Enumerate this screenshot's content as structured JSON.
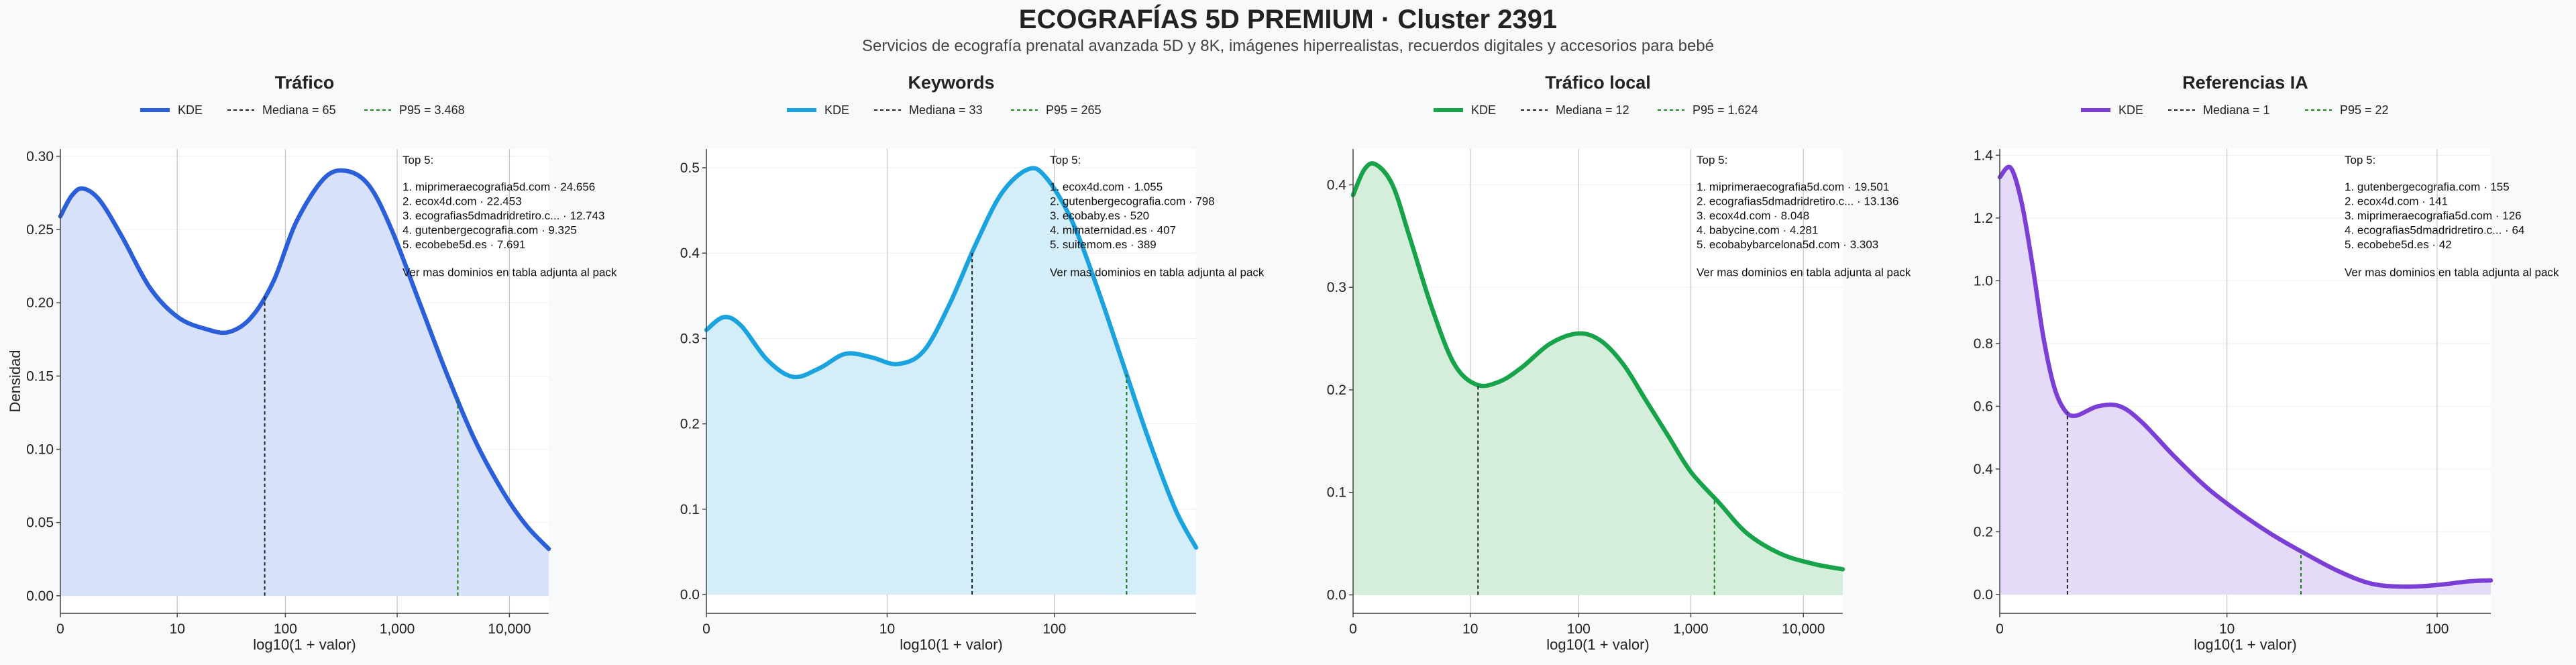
{
  "page": {
    "title": "ECOGRAFÍAS 5D PREMIUM · Cluster 2391",
    "subtitle": "Servicios de ecografía prenatal avanzada 5D y 8K, imágenes hiperrealistas, recuerdos digitales y accesorios para bebé"
  },
  "chart_data": [
    {
      "type": "area",
      "title": "Tráfico",
      "color": "#2a5fd9",
      "fill": "#d8e1fa",
      "xlabel": "log10(1 + valor)",
      "ylabel": "Densidad",
      "xlim": [
        0,
        4.35
      ],
      "ylim": [
        -0.012,
        0.305
      ],
      "xticks": [
        {
          "pos": 0,
          "label": "0"
        },
        {
          "pos": 1.041,
          "label": "10"
        },
        {
          "pos": 2.004,
          "label": "100"
        },
        {
          "pos": 3.0,
          "label": "1,000"
        },
        {
          "pos": 4.0,
          "label": "10,000"
        }
      ],
      "yticks": [
        0,
        0.05,
        0.1,
        0.15,
        0.2,
        0.25,
        0.3
      ],
      "ytick_labels": [
        "0.00",
        "0.05",
        "0.10",
        "0.15",
        "0.20",
        "0.25",
        "0.30"
      ],
      "legend": {
        "kde": "KDE",
        "median": "Mediana = 65",
        "p95": "P95 = 3.468"
      },
      "median_x": 1.82,
      "p95_x": 3.54,
      "kde": [
        [
          0,
          0.259
        ],
        [
          0.1,
          0.273
        ],
        [
          0.2,
          0.278
        ],
        [
          0.35,
          0.27
        ],
        [
          0.55,
          0.245
        ],
        [
          0.8,
          0.21
        ],
        [
          1.05,
          0.19
        ],
        [
          1.3,
          0.182
        ],
        [
          1.5,
          0.18
        ],
        [
          1.7,
          0.19
        ],
        [
          1.9,
          0.215
        ],
        [
          2.1,
          0.255
        ],
        [
          2.35,
          0.285
        ],
        [
          2.55,
          0.29
        ],
        [
          2.75,
          0.28
        ],
        [
          2.95,
          0.25
        ],
        [
          3.2,
          0.2
        ],
        [
          3.45,
          0.15
        ],
        [
          3.7,
          0.105
        ],
        [
          3.95,
          0.07
        ],
        [
          4.15,
          0.048
        ],
        [
          4.35,
          0.032
        ]
      ],
      "top5": {
        "heading": "Top 5:",
        "items": [
          "1. miprimeraecografia5d.com · 24.656",
          "2. ecox4d.com · 22.453",
          "3. ecografias5dmadridretiro.c... · 12.743",
          "4. gutenbergecografia.com · 9.325",
          "5. ecobebe5d.es · 7.691"
        ],
        "note": "Ver mas dominios en tabla adjunta al pack"
      }
    },
    {
      "type": "area",
      "title": "Keywords",
      "color": "#1aa3de",
      "fill": "#d3edf9",
      "xlabel": "log10(1 + valor)",
      "ylabel": "",
      "xlim": [
        0,
        2.82
      ],
      "ylim": [
        -0.022,
        0.522
      ],
      "xticks": [
        {
          "pos": 0,
          "label": "0"
        },
        {
          "pos": 1.041,
          "label": "10"
        },
        {
          "pos": 2.004,
          "label": "100"
        }
      ],
      "yticks": [
        0,
        0.1,
        0.2,
        0.3,
        0.4,
        0.5
      ],
      "ytick_labels": [
        "0.0",
        "0.1",
        "0.2",
        "0.3",
        "0.4",
        "0.5"
      ],
      "legend": {
        "kde": "KDE",
        "median": "Mediana = 33",
        "p95": "P95 = 265"
      },
      "median_x": 1.53,
      "p95_x": 2.42,
      "kde": [
        [
          0,
          0.31
        ],
        [
          0.1,
          0.325
        ],
        [
          0.2,
          0.315
        ],
        [
          0.35,
          0.275
        ],
        [
          0.5,
          0.255
        ],
        [
          0.65,
          0.265
        ],
        [
          0.8,
          0.282
        ],
        [
          0.95,
          0.278
        ],
        [
          1.1,
          0.27
        ],
        [
          1.25,
          0.285
        ],
        [
          1.4,
          0.34
        ],
        [
          1.55,
          0.41
        ],
        [
          1.7,
          0.47
        ],
        [
          1.85,
          0.498
        ],
        [
          1.95,
          0.49
        ],
        [
          2.1,
          0.44
        ],
        [
          2.25,
          0.36
        ],
        [
          2.4,
          0.27
        ],
        [
          2.55,
          0.18
        ],
        [
          2.7,
          0.1
        ],
        [
          2.82,
          0.055
        ]
      ],
      "top5": {
        "heading": "Top 5:",
        "items": [
          "1. ecox4d.com · 1.055",
          "2. gutenbergecografia.com · 798",
          "3. ecobaby.es · 520",
          "4. mimaternidad.es · 407",
          "5. suitemom.es · 389"
        ],
        "note": "Ver mas dominios en tabla adjunta al pack"
      }
    },
    {
      "type": "area",
      "title": "Tráfico local",
      "color": "#16a34a",
      "fill": "#d4eedb",
      "xlabel": "log10(1 + valor)",
      "ylabel": "",
      "xlim": [
        0,
        4.35
      ],
      "ylim": [
        -0.018,
        0.435
      ],
      "xticks": [
        {
          "pos": 0,
          "label": "0"
        },
        {
          "pos": 1.041,
          "label": "10"
        },
        {
          "pos": 2.004,
          "label": "100"
        },
        {
          "pos": 3.0,
          "label": "1,000"
        },
        {
          "pos": 4.0,
          "label": "10,000"
        }
      ],
      "yticks": [
        0,
        0.1,
        0.2,
        0.3,
        0.4
      ],
      "ytick_labels": [
        "0.0",
        "0.1",
        "0.2",
        "0.3",
        "0.4"
      ],
      "legend": {
        "kde": "KDE",
        "median": "Mediana = 12",
        "p95": "P95 = 1.624"
      },
      "median_x": 1.11,
      "p95_x": 3.21,
      "kde": [
        [
          0,
          0.39
        ],
        [
          0.1,
          0.415
        ],
        [
          0.2,
          0.42
        ],
        [
          0.35,
          0.4
        ],
        [
          0.5,
          0.35
        ],
        [
          0.7,
          0.28
        ],
        [
          0.9,
          0.225
        ],
        [
          1.1,
          0.205
        ],
        [
          1.3,
          0.208
        ],
        [
          1.5,
          0.222
        ],
        [
          1.75,
          0.245
        ],
        [
          2.0,
          0.255
        ],
        [
          2.2,
          0.248
        ],
        [
          2.4,
          0.225
        ],
        [
          2.6,
          0.19
        ],
        [
          2.8,
          0.155
        ],
        [
          3.0,
          0.12
        ],
        [
          3.25,
          0.09
        ],
        [
          3.5,
          0.06
        ],
        [
          3.8,
          0.04
        ],
        [
          4.1,
          0.03
        ],
        [
          4.35,
          0.025
        ]
      ],
      "top5": {
        "heading": "Top 5:",
        "items": [
          "1. miprimeraecografia5d.com · 19.501",
          "2. ecografias5dmadridretiro.c... · 13.136",
          "3. ecox4d.com · 8.048",
          "4. babycine.com · 4.281",
          "5. ecobabybarcelona5d.com · 3.303"
        ],
        "note": "Ver mas dominios en tabla adjunta al pack"
      }
    },
    {
      "type": "area",
      "title": "Referencias IA",
      "color": "#7b3fd8",
      "fill": "#e5dbf9",
      "xlabel": "log10(1 + valor)",
      "ylabel": "",
      "xlim": [
        0,
        2.25
      ],
      "ylim": [
        -0.06,
        1.42
      ],
      "xticks": [
        {
          "pos": 0,
          "label": "0"
        },
        {
          "pos": 1.041,
          "label": "10"
        },
        {
          "pos": 2.004,
          "label": "100"
        }
      ],
      "yticks": [
        0,
        0.2,
        0.4,
        0.6,
        0.8,
        1.0,
        1.2,
        1.4
      ],
      "ytick_labels": [
        "0.0",
        "0.2",
        "0.4",
        "0.6",
        "0.8",
        "1.0",
        "1.2",
        "1.4"
      ],
      "legend": {
        "kde": "KDE",
        "median": "Mediana = 1",
        "p95": "P95 = 22"
      },
      "median_x": 0.31,
      "p95_x": 1.38,
      "kde": [
        [
          0,
          1.33
        ],
        [
          0.05,
          1.36
        ],
        [
          0.1,
          1.25
        ],
        [
          0.15,
          1.05
        ],
        [
          0.2,
          0.82
        ],
        [
          0.25,
          0.66
        ],
        [
          0.3,
          0.585
        ],
        [
          0.35,
          0.57
        ],
        [
          0.45,
          0.6
        ],
        [
          0.55,
          0.6
        ],
        [
          0.65,
          0.55
        ],
        [
          0.8,
          0.44
        ],
        [
          0.95,
          0.34
        ],
        [
          1.1,
          0.26
        ],
        [
          1.25,
          0.19
        ],
        [
          1.4,
          0.13
        ],
        [
          1.55,
          0.075
        ],
        [
          1.7,
          0.035
        ],
        [
          1.85,
          0.025
        ],
        [
          2.0,
          0.03
        ],
        [
          2.15,
          0.042
        ],
        [
          2.25,
          0.045
        ]
      ],
      "top5": {
        "heading": "Top 5:",
        "items": [
          "1. gutenbergecografia.com · 155",
          "2. ecox4d.com · 141",
          "3. miprimeraecografia5d.com · 126",
          "4. ecografias5dmadridretiro.c... · 64",
          "5. ecobebe5d.es · 42"
        ],
        "note": "Ver mas dominios en tabla adjunta al pack"
      }
    }
  ]
}
